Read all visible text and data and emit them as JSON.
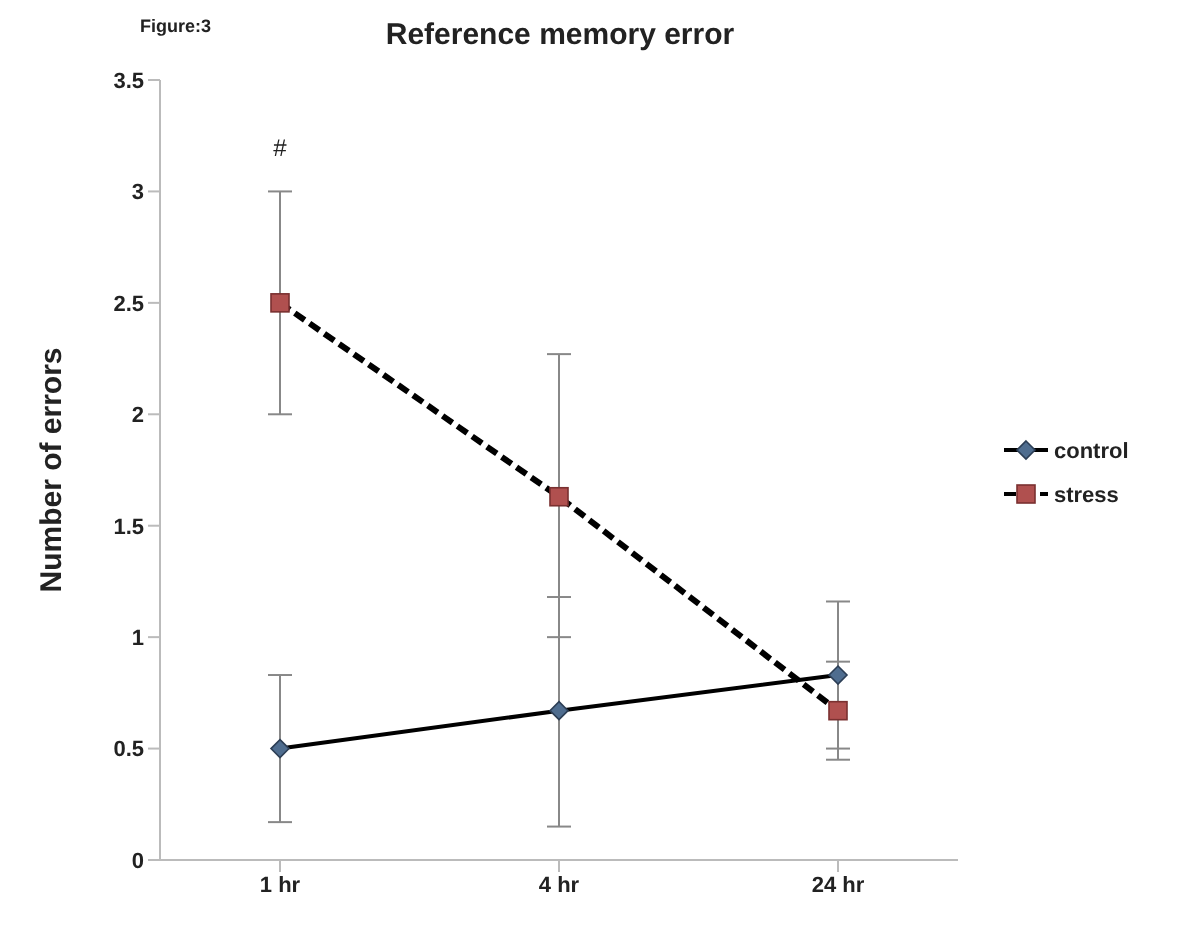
{
  "chart_data": {
    "type": "line",
    "title": "Reference memory  error",
    "ylabel": "Number of errors",
    "annotations": [
      "Figure:3",
      "#"
    ],
    "categories": [
      "1 hr",
      "4 hr",
      "24 hr"
    ],
    "series": [
      {
        "name": "control",
        "color": "#4f6d8f",
        "marker": "diamond",
        "line_style": "solid",
        "values": [
          0.5,
          0.67,
          0.83
        ],
        "errors": [
          [
            0.17,
            0.83
          ],
          [
            0.15,
            1.18
          ],
          [
            0.5,
            1.16
          ]
        ]
      },
      {
        "name": "stress",
        "color": "#b0504f",
        "marker": "square",
        "line_style": "dashed",
        "values": [
          2.5,
          1.63,
          0.67
        ],
        "errors": [
          [
            2.0,
            3.0
          ],
          [
            1.0,
            2.27
          ],
          [
            0.45,
            0.89
          ]
        ]
      }
    ],
    "ylim": [
      0,
      3.5
    ],
    "yticks": [
      0,
      0.5,
      1,
      1.5,
      2,
      2.5,
      3,
      3.5
    ],
    "grid": false,
    "legend": "right"
  }
}
